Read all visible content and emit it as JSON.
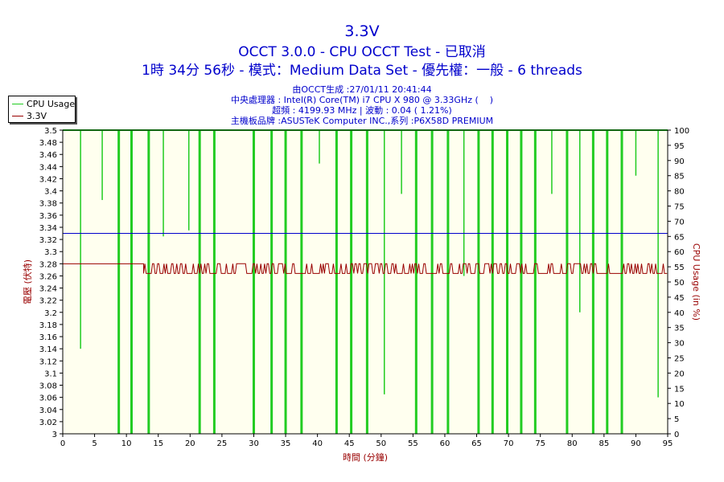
{
  "header": {
    "title": "3.3V",
    "line2": "OCCT 3.0.0 - CPU OCCT Test - 已取消",
    "line3": "1時 34分 56秒 - 模式：Medium Data Set - 優先權：一般 - 6 threads",
    "info": [
      "由OCCT生成 :27/01/11 20:41:44",
      "中央處理器 : Intel(R) Core(TM) i7 CPU X 980 @ 3.33GHz (    )",
      "超頻 : 4199.93 MHz | 波動 : 0.04 ( 1.21%)",
      "主機板品牌 :ASUSTeK Computer INC.,系列 :P6X58D PREMIUM"
    ]
  },
  "legend": {
    "items": [
      {
        "label": "CPU Usage",
        "color": "#22cc22"
      },
      {
        "label": "3.3V",
        "color": "#990000"
      }
    ]
  },
  "colors": {
    "plot_bg": "#ffffef",
    "cpu": "#22cc22",
    "voltage": "#990000",
    "reference_line": "#0000cc",
    "text_blue": "#0000cc",
    "text_red": "#990000"
  },
  "chart_data": {
    "type": "line",
    "xlabel": "時間 (分鐘)",
    "ylabel_left": "電壓 (伏特)",
    "ylabel_right": "CPU Usage (in %)",
    "xlim": [
      0,
      95
    ],
    "ylim_left": [
      3.0,
      3.5
    ],
    "ylim_right": [
      0,
      100
    ],
    "x_ticks": [
      0,
      5,
      10,
      15,
      20,
      25,
      30,
      35,
      40,
      45,
      50,
      55,
      60,
      65,
      70,
      75,
      80,
      85,
      90,
      95
    ],
    "y_left_ticks": [
      "3",
      "3.02",
      "3.04",
      "3.06",
      "3.08",
      "3.1",
      "3.12",
      "3.14",
      "3.16",
      "3.18",
      "3.2",
      "3.22",
      "3.24",
      "3.26",
      "3.28",
      "3.3",
      "3.32",
      "3.34",
      "3.36",
      "3.38",
      "3.4",
      "3.42",
      "3.44",
      "3.46",
      "3.48",
      "3.5"
    ],
    "y_right_ticks": [
      0,
      5,
      10,
      15,
      20,
      25,
      30,
      35,
      40,
      45,
      50,
      55,
      60,
      65,
      70,
      75,
      80,
      85,
      90,
      95,
      100
    ],
    "reference_line": 3.33,
    "grid": false,
    "legend_position": "top-left",
    "series": [
      {
        "name": "CPU Usage",
        "axis": "right",
        "baseline": 100,
        "dips": [
          {
            "x": 2.8,
            "min": 28
          },
          {
            "x": 6.2,
            "min": 77
          },
          {
            "x": 8.8,
            "min": 0
          },
          {
            "x": 10.8,
            "min": 0
          },
          {
            "x": 13.5,
            "min": 0
          },
          {
            "x": 15.8,
            "min": 65
          },
          {
            "x": 19.8,
            "min": 67
          },
          {
            "x": 21.5,
            "min": 0
          },
          {
            "x": 23.8,
            "min": 0
          },
          {
            "x": 30.0,
            "min": 0
          },
          {
            "x": 32.8,
            "min": 0
          },
          {
            "x": 35.0,
            "min": 0
          },
          {
            "x": 37.5,
            "min": 0
          },
          {
            "x": 40.3,
            "min": 89
          },
          {
            "x": 43.0,
            "min": 0
          },
          {
            "x": 45.3,
            "min": 0
          },
          {
            "x": 47.8,
            "min": 0
          },
          {
            "x": 50.5,
            "min": 13
          },
          {
            "x": 53.2,
            "min": 79
          },
          {
            "x": 55.5,
            "min": 0
          },
          {
            "x": 58.0,
            "min": 0
          },
          {
            "x": 60.5,
            "min": 0
          },
          {
            "x": 63.0,
            "min": 52
          },
          {
            "x": 65.3,
            "min": 0
          },
          {
            "x": 67.5,
            "min": 0
          },
          {
            "x": 69.8,
            "min": 0
          },
          {
            "x": 72.0,
            "min": 0
          },
          {
            "x": 74.2,
            "min": 0
          },
          {
            "x": 76.8,
            "min": 79
          },
          {
            "x": 79.2,
            "min": 0
          },
          {
            "x": 81.2,
            "min": 40
          },
          {
            "x": 83.3,
            "min": 0
          },
          {
            "x": 85.5,
            "min": 0
          },
          {
            "x": 87.8,
            "min": 0
          },
          {
            "x": 90.0,
            "min": 85
          },
          {
            "x": 93.5,
            "min": 12
          }
        ]
      },
      {
        "name": "3.3V",
        "axis": "left",
        "initial_value": 3.28,
        "initial_until": 12.7,
        "low_value": 3.264,
        "high_value": 3.28,
        "toggle_interval": 0.2
      }
    ]
  }
}
